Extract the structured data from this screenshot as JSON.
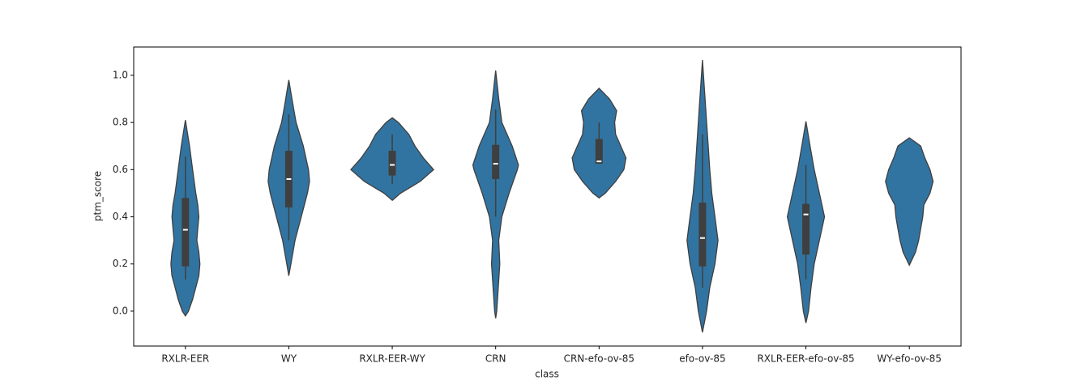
{
  "chart_data": {
    "type": "violin",
    "xlabel": "class",
    "ylabel": "ptm_score",
    "color": "#3274a1",
    "ylim": [
      -0.148,
      1.12
    ],
    "yticks": [
      {
        "value": 0,
        "label": "0.0"
      },
      0.2,
      0.4,
      0.6,
      0.8,
      {
        "value": 1,
        "label": "1.0"
      }
    ],
    "categories": [
      "RXLR-EER",
      "WY",
      "RXLR-EER-WY",
      "CRN",
      "CRN-efo-ov-85",
      "efo-ov-85",
      "RXLR-EER-efo-ov-85",
      "WY-efo-ov-85"
    ],
    "violins": [
      {
        "kde_y": [
          -0.02,
          0.0,
          0.05,
          0.1,
          0.15,
          0.2,
          0.25,
          0.3,
          0.35,
          0.4,
          0.45,
          0.5,
          0.6,
          0.7,
          0.81
        ],
        "kde_width": [
          0,
          0.03,
          0.07,
          0.1,
          0.13,
          0.14,
          0.13,
          0.11,
          0.12,
          0.13,
          0.12,
          0.1,
          0.07,
          0.04,
          0
        ],
        "q1": 0.19,
        "median": 0.345,
        "q3": 0.48,
        "whisker_low": 0.135,
        "whisker_high": 0.655
      },
      {
        "kde_y": [
          0.15,
          0.2,
          0.3,
          0.4,
          0.5,
          0.55,
          0.6,
          0.7,
          0.8,
          0.85,
          0.9,
          0.98
        ],
        "kde_width": [
          0,
          0.02,
          0.06,
          0.12,
          0.18,
          0.2,
          0.19,
          0.14,
          0.07,
          0.05,
          0.03,
          0
        ],
        "q1": 0.44,
        "median": 0.56,
        "q3": 0.68,
        "whisker_low": 0.3,
        "whisker_high": 0.835
      },
      {
        "kde_y": [
          0.47,
          0.5,
          0.55,
          0.6,
          0.65,
          0.7,
          0.75,
          0.8,
          0.82
        ],
        "kde_width": [
          0,
          0.08,
          0.27,
          0.4,
          0.3,
          0.22,
          0.16,
          0.06,
          0
        ],
        "q1": 0.575,
        "median": 0.62,
        "q3": 0.68,
        "whisker_low": 0.54,
        "whisker_high": 0.75
      },
      {
        "kde_y": [
          -0.03,
          0.0,
          0.1,
          0.2,
          0.3,
          0.4,
          0.5,
          0.6,
          0.62,
          0.7,
          0.8,
          0.9,
          1.02
        ],
        "kde_width": [
          0,
          0.01,
          0.025,
          0.04,
          0.03,
          0.06,
          0.13,
          0.21,
          0.22,
          0.16,
          0.06,
          0.03,
          0
        ],
        "q1": 0.56,
        "median": 0.625,
        "q3": 0.705,
        "whisker_low": 0.4,
        "whisker_high": 0.855
      },
      {
        "kde_y": [
          0.48,
          0.5,
          0.55,
          0.6,
          0.65,
          0.7,
          0.75,
          0.8,
          0.85,
          0.9,
          0.945
        ],
        "kde_width": [
          0,
          0.06,
          0.16,
          0.24,
          0.26,
          0.21,
          0.16,
          0.15,
          0.17,
          0.1,
          0
        ],
        "q1": 0.625,
        "median": 0.635,
        "q3": 0.73,
        "whisker_low": 0.625,
        "whisker_high": 0.8
      },
      {
        "kde_y": [
          -0.09,
          0.0,
          0.1,
          0.2,
          0.3,
          0.4,
          0.5,
          0.6,
          0.7,
          0.8,
          0.9,
          1.065
        ],
        "kde_width": [
          0,
          0.04,
          0.07,
          0.12,
          0.15,
          0.12,
          0.09,
          0.07,
          0.055,
          0.04,
          0.025,
          0
        ],
        "q1": 0.19,
        "median": 0.31,
        "q3": 0.46,
        "whisker_low": 0.1,
        "whisker_high": 0.75
      },
      {
        "kde_y": [
          -0.05,
          0.0,
          0.1,
          0.2,
          0.3,
          0.4,
          0.5,
          0.6,
          0.7,
          0.805
        ],
        "kde_width": [
          0,
          0.025,
          0.05,
          0.08,
          0.13,
          0.18,
          0.13,
          0.08,
          0.04,
          0
        ],
        "q1": 0.24,
        "median": 0.41,
        "q3": 0.455,
        "whisker_low": 0.135,
        "whisker_high": 0.62
      },
      {
        "kde_y": [
          0.195,
          0.25,
          0.3,
          0.35,
          0.4,
          0.45,
          0.5,
          0.55,
          0.6,
          0.65,
          0.7,
          0.735
        ],
        "kde_width": [
          0,
          0.06,
          0.09,
          0.11,
          0.13,
          0.14,
          0.2,
          0.23,
          0.2,
          0.15,
          0.11,
          0
        ]
      }
    ]
  }
}
